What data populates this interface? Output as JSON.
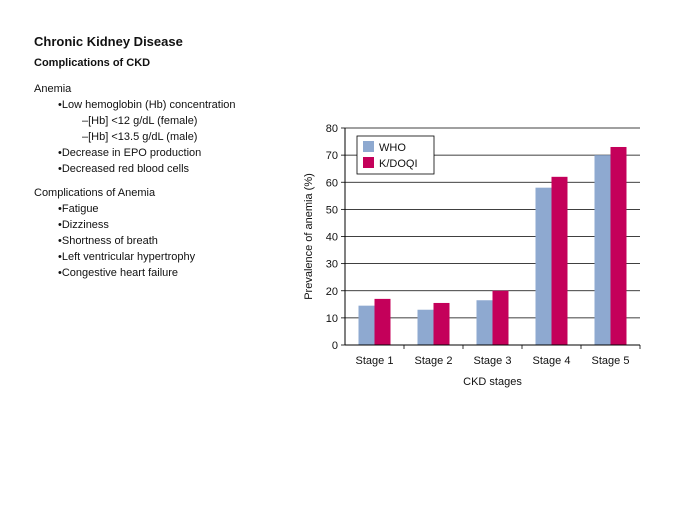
{
  "slide": {
    "title": "Chronic Kidney Disease",
    "subtitle": "Complications of CKD"
  },
  "anemia": {
    "heading": "Anemia",
    "items": [
      {
        "level": 1,
        "text": "Low hemoglobin (Hb) concentration"
      },
      {
        "level": 2,
        "text": "[Hb] <12 g/dL (female)"
      },
      {
        "level": 2,
        "text": "[Hb] <13.5 g/dL (male)"
      },
      {
        "level": 1,
        "text": "Decrease in EPO production"
      },
      {
        "level": 1,
        "text": "Decreased red blood cells"
      }
    ]
  },
  "complications": {
    "heading": "Complications of Anemia",
    "items": [
      "Fatigue",
      "Dizziness",
      "Shortness of breath",
      "Left ventricular hypertrophy",
      "Congestive heart failure"
    ]
  },
  "chart_data": {
    "type": "bar",
    "categories": [
      "Stage 1",
      "Stage 2",
      "Stage 3",
      "Stage 4",
      "Stage 5"
    ],
    "series": [
      {
        "name": "WHO",
        "color": "#8ea9d0",
        "values": [
          14.5,
          13,
          16.5,
          58,
          70
        ]
      },
      {
        "name": "K/DOQI",
        "color": "#c4005a",
        "values": [
          17,
          15.5,
          20,
          62,
          73
        ]
      }
    ],
    "xlabel": "CKD stages",
    "ylabel": "Prevalence of anemia (%)",
    "ylim": [
      0,
      80
    ],
    "yticks": [
      0,
      10,
      20,
      30,
      40,
      50,
      60,
      70,
      80
    ],
    "grid": true,
    "legend_position": "top-left"
  }
}
